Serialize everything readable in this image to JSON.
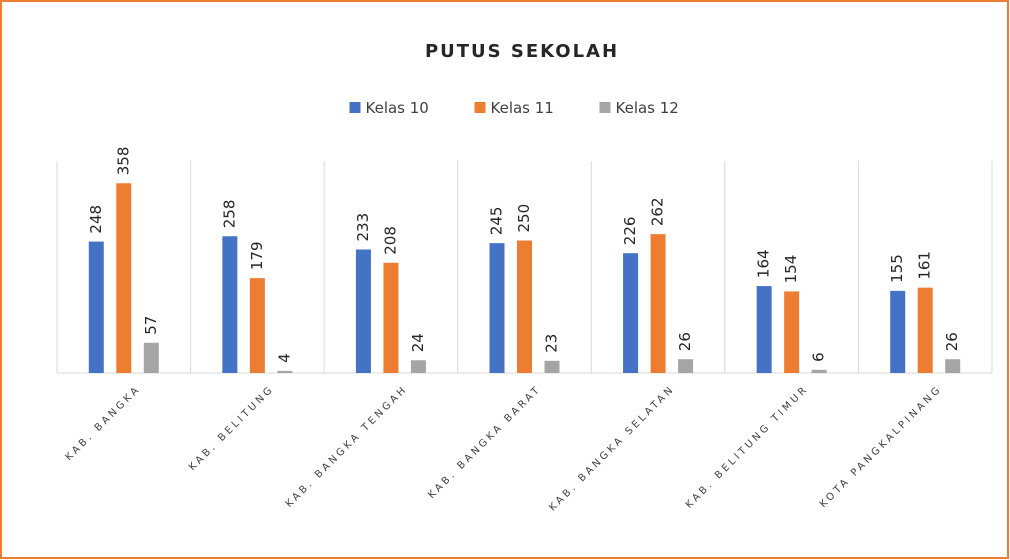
{
  "chart_data": {
    "type": "bar",
    "title": "PUTUS SEKOLAH",
    "categories": [
      "KAB. BANGKA",
      "KAB. BELITUNG",
      "KAB. BANGKA TENGAH",
      "KAB. BANGKA BARAT",
      "KAB. BANGKA SELATAN",
      "KAB. BELITUNG TIMUR",
      "KOTA PANGKALPINANG"
    ],
    "series": [
      {
        "name": "Kelas 10",
        "color": "#4472c4",
        "values": [
          248,
          258,
          233,
          245,
          226,
          164,
          155
        ]
      },
      {
        "name": "Kelas 11",
        "color": "#ed7d31",
        "values": [
          358,
          179,
          208,
          250,
          262,
          154,
          161
        ]
      },
      {
        "name": "Kelas 12",
        "color": "#a5a5a5",
        "values": [
          57,
          4,
          24,
          23,
          26,
          6,
          26
        ]
      }
    ],
    "ylim": [
      0,
      400
    ],
    "legend": "top"
  }
}
